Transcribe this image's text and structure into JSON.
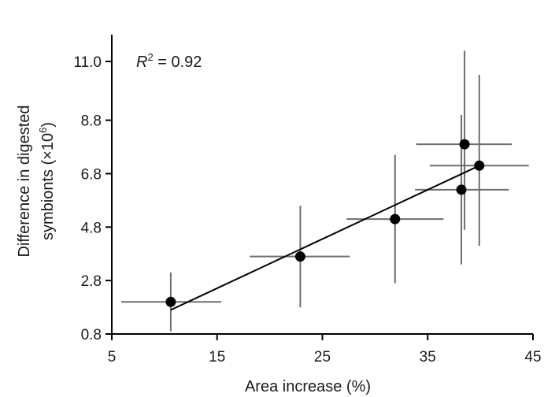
{
  "chart_data": {
    "type": "scatter",
    "xlabel": "Area increase (%)",
    "ylabel_line1": "Difference in digested",
    "ylabel_line2": "symbionts (×10",
    "ylabel_sup": "6",
    "ylabel_close": ")",
    "xlim": [
      5,
      45
    ],
    "ylim": [
      0.8,
      11.8
    ],
    "xticks": [
      5,
      15,
      25,
      35,
      45
    ],
    "xtick_labels": [
      "5",
      "15",
      "25",
      "35",
      "45"
    ],
    "yticks": [
      0.8,
      2.8,
      4.8,
      6.8,
      8.8,
      11.0
    ],
    "ytick_labels": [
      "0.8",
      "2.8",
      "4.8",
      "6.8",
      "8.8",
      "11.0"
    ],
    "grid": false,
    "annotation": {
      "r_label": "R",
      "r_sup": "2",
      "r_value": " = 0.92"
    },
    "points": [
      {
        "x": 10.6,
        "y": 2.0,
        "xerr": [
          5.9,
          15.4
        ],
        "yerr": [
          0.9,
          3.1
        ]
      },
      {
        "x": 22.9,
        "y": 3.7,
        "xerr": [
          18.1,
          27.6
        ],
        "yerr": [
          1.8,
          5.6
        ]
      },
      {
        "x": 31.9,
        "y": 5.1,
        "xerr": [
          27.3,
          36.5
        ],
        "yerr": [
          2.7,
          7.5
        ]
      },
      {
        "x": 38.2,
        "y": 6.2,
        "xerr": [
          33.8,
          42.7
        ],
        "yerr": [
          3.4,
          9.0
        ]
      },
      {
        "x": 38.5,
        "y": 7.9,
        "xerr": [
          33.9,
          43.0
        ],
        "yerr": [
          4.7,
          11.4
        ]
      },
      {
        "x": 39.9,
        "y": 7.1,
        "xerr": [
          35.2,
          44.6
        ],
        "yerr": [
          4.1,
          10.5
        ]
      }
    ],
    "fit_line": {
      "x": [
        10.6,
        39.9
      ],
      "y": [
        1.7,
        7.1
      ]
    },
    "colors": {
      "point": "#000000",
      "errorbar": "#6e6e6e",
      "fit": "#000000",
      "axis": "#000000"
    }
  }
}
